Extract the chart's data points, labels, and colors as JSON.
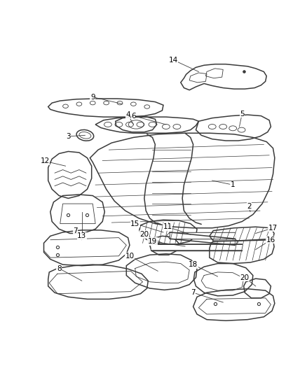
{
  "bg_color": "#ffffff",
  "line_color": "#3a3a3a",
  "label_color": "#000000",
  "figsize": [
    4.38,
    5.33
  ],
  "dpi": 100,
  "lw_main": 1.1,
  "lw_thin": 0.6,
  "label_fontsize": 7.5
}
